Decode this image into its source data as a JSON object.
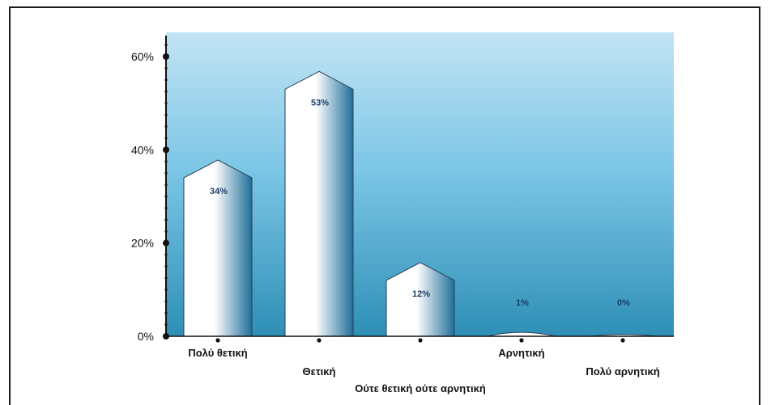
{
  "chart_data": {
    "type": "bar",
    "title": "",
    "xlabel": "",
    "ylabel": "",
    "categories": [
      "Πολύ θετική",
      "Θετική",
      "Ούτε θετική ούτε αρνητική",
      "Αρνητική",
      "Πολύ αρνητική"
    ],
    "values": [
      34,
      53,
      12,
      1,
      0
    ],
    "value_labels": [
      "34%",
      "53%",
      "12%",
      "1%",
      "0%"
    ],
    "ylim": [
      0,
      65
    ],
    "yticks": [
      0,
      20,
      40,
      60
    ],
    "ytick_labels": [
      "0%",
      "20%",
      "40%",
      "60%"
    ],
    "grid": false,
    "legend": "none",
    "bar_shape": "arrow-top",
    "colors": {
      "plot_top": "#c2e4f4",
      "plot_mid": "#7cc6e6",
      "plot_bottom": "#2e8fb6",
      "bar_fill": "#ffffff",
      "bar_edge": "#1f6f99",
      "bar_stroke": "#2a3f55",
      "label_text": "#1d3d66",
      "axis": "#111111"
    }
  }
}
